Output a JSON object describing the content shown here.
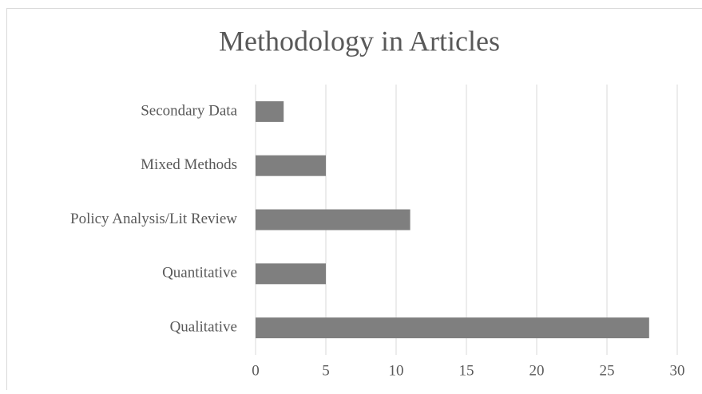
{
  "chart_data": {
    "type": "bar",
    "orientation": "horizontal",
    "title": "Methodology in Articles",
    "categories": [
      "Secondary Data",
      "Mixed Methods",
      "Policy Analysis/Lit Review",
      "Quantitative",
      "Qualitative"
    ],
    "values": [
      2,
      5,
      11,
      5,
      28
    ],
    "color": "#7f7f7f",
    "xlim": [
      0,
      30
    ],
    "xticks": [
      0,
      5,
      10,
      15,
      20,
      25,
      30
    ],
    "grid": true
  }
}
